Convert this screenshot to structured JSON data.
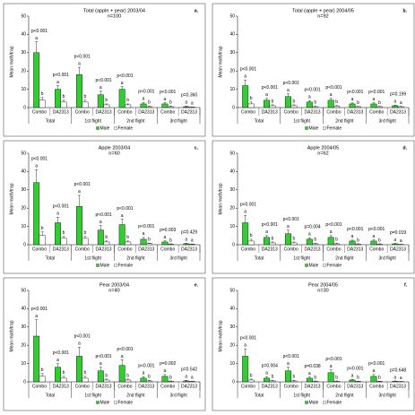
{
  "chart_data": [
    {
      "type": "bar",
      "title": "Total (apple + pear) 2003/04",
      "subtitle": "n=100",
      "label": "a.",
      "ylabel": "Mean moth/trap",
      "groups": [
        "Total",
        "1st flight",
        "2nd flight",
        "3rd flight"
      ],
      "categories": [
        "Combo",
        "DA2313",
        "Combo",
        "DA2313",
        "Combo",
        "DA2313",
        "Combo",
        "DA2313"
      ],
      "series": [
        {
          "name": "Male",
          "color": "#33cc33",
          "values": [
            30,
            10,
            18,
            7,
            10,
            2,
            2,
            0.5
          ],
          "errors": [
            6,
            2,
            4,
            2,
            1.5,
            0.8,
            0.6,
            0.3
          ],
          "letters": [
            "a",
            "a",
            "a",
            "a",
            "a",
            "a",
            "a",
            "a"
          ]
        },
        {
          "name": "Female",
          "color": "#ffffff",
          "values": [
            4,
            3,
            3,
            1.5,
            1.5,
            0.5,
            0.5,
            0.3
          ],
          "errors": [
            1.5,
            1,
            1,
            0.5,
            0.5,
            0.3,
            0.3,
            0.1
          ],
          "letters": [
            "b",
            "b",
            "b",
            "b",
            "b",
            "b",
            "b",
            "a"
          ]
        }
      ],
      "p_values": [
        "p<0.001",
        "p<0.001",
        "p<0.001",
        "p<0.001",
        "p<0.001",
        "p<0.001",
        "p<0.001",
        "p=0.360"
      ],
      "ylim": [
        0,
        50
      ],
      "yticks": [
        0,
        10,
        20,
        30,
        40,
        50
      ]
    },
    {
      "type": "bar",
      "title": "Total (apple + pear) 2004/05",
      "subtitle": "n=92",
      "label": "b.",
      "ylabel": "Mean moth/trap",
      "groups": [
        "Total",
        "1st flight",
        "2nd flight",
        "3rd flight"
      ],
      "categories": [
        "Combo",
        "DA2313",
        "Combo",
        "DA2313",
        "Combo",
        "DA2313",
        "Combo",
        "DA2313"
      ],
      "series": [
        {
          "name": "Male",
          "color": "#33cc33",
          "values": [
            12,
            4,
            6,
            3,
            4,
            2,
            2,
            1
          ],
          "errors": [
            3,
            1,
            1.5,
            0.8,
            1,
            0.5,
            0.6,
            0.3
          ],
          "letters": [
            "a",
            "a",
            "a",
            "a",
            "a",
            "a",
            "a",
            "a"
          ]
        },
        {
          "name": "Female",
          "color": "#ffffff",
          "values": [
            2,
            1,
            1,
            0.5,
            0.8,
            0.5,
            0.5,
            0.5
          ],
          "errors": [
            1,
            0.5,
            0.5,
            0.3,
            0.3,
            0.2,
            0.2,
            0.2
          ],
          "letters": [
            "b",
            "b",
            "b",
            "b",
            "b",
            "b",
            "b",
            "a"
          ]
        }
      ],
      "p_values": [
        "p<0.001",
        "p<0.001",
        "p<0.001",
        "p<0.001",
        "p<0.001",
        "p<0.001",
        "p<0.001",
        "p=0.199"
      ],
      "ylim": [
        0,
        50
      ],
      "yticks": [
        0,
        10,
        20,
        30,
        40,
        50
      ]
    },
    {
      "type": "bar",
      "title": "Apple 2003/04",
      "subtitle": "n=60",
      "label": "c.",
      "ylabel": "Mean moth/trap",
      "groups": [
        "Total",
        "1st flight",
        "2nd flight",
        "3rd flight"
      ],
      "categories": [
        "Combo",
        "DA2313",
        "Combo",
        "DA2313",
        "Combo",
        "DA2313",
        "Combo",
        "DA2313"
      ],
      "series": [
        {
          "name": "Male",
          "color": "#33cc33",
          "values": [
            34,
            12,
            21,
            8,
            11,
            3,
            1.5,
            0.5
          ],
          "errors": [
            7,
            3,
            6,
            2.5,
            3,
            1,
            0.6,
            0.3
          ],
          "letters": [
            "a",
            "a",
            "a",
            "a",
            "a",
            "a",
            "a",
            "a"
          ]
        },
        {
          "name": "Female",
          "color": "#ffffff",
          "values": [
            5,
            3.5,
            3.5,
            1.5,
            1.5,
            0.6,
            0.3,
            0.2
          ],
          "errors": [
            2,
            1,
            1,
            0.5,
            0.5,
            0.3,
            0.2,
            0.1
          ],
          "letters": [
            "b",
            "b",
            "b",
            "b",
            "b",
            "b",
            "b",
            "a"
          ]
        }
      ],
      "p_values": [
        "p<0.001",
        "p<0.001",
        "p<0.001",
        "p<0.001",
        "p<0.001",
        "p<0.001",
        "p=0.003",
        "p=0.429"
      ],
      "ylim": [
        0,
        50
      ],
      "yticks": [
        0,
        10,
        20,
        30,
        40,
        50
      ]
    },
    {
      "type": "bar",
      "title": "Apple 2004/05",
      "subtitle": "n=62",
      "label": "d.",
      "ylabel": "Mean moth/trap",
      "groups": [
        "Total",
        "1st flight",
        "2nd flight",
        "3rd flight"
      ],
      "categories": [
        "Combo",
        "DA2313",
        "Combo",
        "DA2313",
        "Combo",
        "DA2313",
        "Combo",
        "DA2313"
      ],
      "series": [
        {
          "name": "Male",
          "color": "#33cc33",
          "values": [
            12,
            4,
            6,
            3,
            4,
            2,
            2,
            0.5
          ],
          "errors": [
            4,
            1,
            2,
            0.8,
            1,
            0.5,
            0.6,
            0.2
          ],
          "letters": [
            "a",
            "a",
            "a",
            "a",
            "a",
            "a",
            "a",
            "a"
          ]
        },
        {
          "name": "Female",
          "color": "#ffffff",
          "values": [
            2,
            1,
            1,
            0.5,
            0.5,
            0.3,
            0.3,
            0.1
          ],
          "errors": [
            1,
            0.5,
            0.5,
            0.3,
            0.3,
            0.2,
            0.2,
            0.1
          ],
          "letters": [
            "b",
            "b",
            "b",
            "b",
            "b",
            "b",
            "b",
            "a"
          ]
        }
      ],
      "p_values": [
        "p<0.001",
        "p<0.001",
        "p<0.001",
        "p=0.004",
        "p<0.001",
        "p<0.001",
        "p<0.001",
        "p=0.019"
      ],
      "ylim": [
        0,
        50
      ],
      "yticks": [
        0,
        10,
        20,
        30,
        40,
        50
      ]
    },
    {
      "type": "bar",
      "title": "Pear 2003/04",
      "subtitle": "n=40",
      "label": "e.",
      "ylabel": "Mean moth/trap",
      "groups": [
        "Total",
        "1st flight",
        "2nd flight",
        "3rd flight"
      ],
      "categories": [
        "Combo",
        "DA2313",
        "Combo",
        "DA2313",
        "Combo",
        "DA2313",
        "Combo",
        "DA2313"
      ],
      "series": [
        {
          "name": "Male",
          "color": "#33cc33",
          "values": [
            25,
            8,
            14,
            6,
            9,
            2,
            3,
            0.5
          ],
          "errors": [
            9,
            2,
            5,
            2,
            3,
            0.8,
            1,
            0.3
          ],
          "letters": [
            "a",
            "a",
            "a",
            "a",
            "a",
            "a",
            "a",
            "a"
          ]
        },
        {
          "name": "Female",
          "color": "#ffffff",
          "values": [
            3,
            2,
            2,
            1,
            1,
            0.5,
            0.3,
            0.3
          ],
          "errors": [
            1.5,
            1,
            1,
            0.5,
            0.5,
            0.3,
            0.2,
            0.1
          ],
          "letters": [
            "b",
            "b",
            "b",
            "b",
            "b",
            "b",
            "b",
            "a"
          ]
        }
      ],
      "p_values": [
        "p<0.001",
        "p<0.001",
        "p<0.001",
        "p<0.001",
        "p<0.001",
        "p<0.001",
        "p=0.002",
        "p=0.542"
      ],
      "ylim": [
        0,
        50
      ],
      "yticks": [
        0,
        10,
        20,
        30,
        40,
        50
      ]
    },
    {
      "type": "bar",
      "title": "Pear 2004/05",
      "subtitle": "n=30",
      "label": "f.",
      "ylabel": "Mean moth/trap",
      "groups": [
        "Total",
        "1st flight",
        "2nd flight",
        "3rd flight"
      ],
      "categories": [
        "Combo",
        "DA2313",
        "Combo",
        "DA2313",
        "Combo",
        "DA2313",
        "Combo",
        "DA2313"
      ],
      "series": [
        {
          "name": "Male",
          "color": "#33cc33",
          "values": [
            14,
            2,
            6,
            2,
            5,
            1,
            3,
            0.3
          ],
          "errors": [
            4,
            0.8,
            2,
            0.6,
            1.5,
            0.4,
            1,
            0.2
          ],
          "letters": [
            "a",
            "a",
            "a",
            "a",
            "a",
            "a",
            "a",
            "a"
          ]
        },
        {
          "name": "Female",
          "color": "#ffffff",
          "values": [
            1,
            0.5,
            0.5,
            0.3,
            0.3,
            0.2,
            0.2,
            0.1
          ],
          "errors": [
            0.5,
            0.3,
            0.3,
            0.2,
            0.2,
            0.1,
            0.1,
            0.1
          ],
          "letters": [
            "b",
            "b",
            "b",
            "b",
            "b",
            "b",
            "b",
            "a"
          ]
        }
      ],
      "p_values": [
        "p<0.001",
        "p=0.004",
        "p<0.001",
        "p=0.038",
        "p<0.001",
        "p<0.001",
        "p<0.001",
        "p=0.648"
      ],
      "ylim": [
        0,
        50
      ],
      "yticks": [
        0,
        10,
        20,
        30,
        40,
        50
      ]
    }
  ]
}
